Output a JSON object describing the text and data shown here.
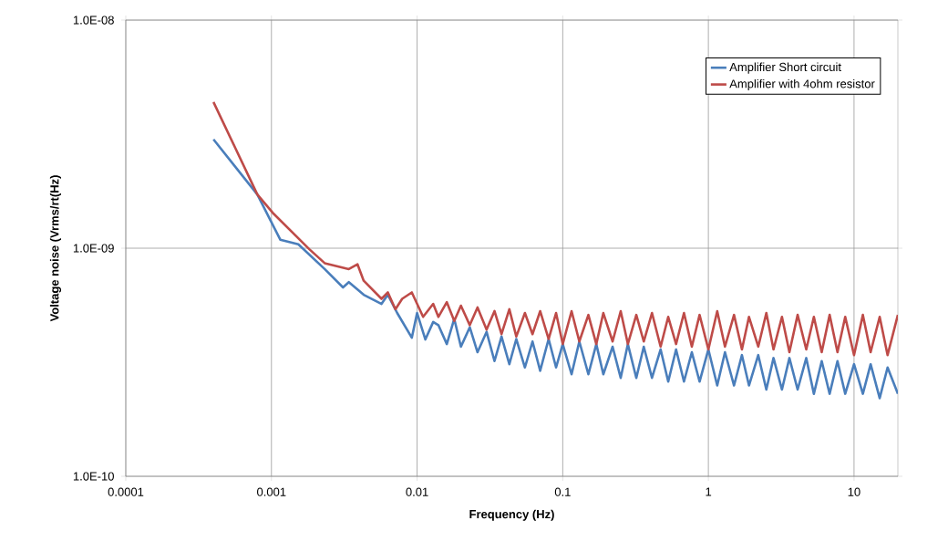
{
  "chart_data": {
    "type": "line",
    "xlabel": "Frequency (Hz)",
    "ylabel": "Voltage noise (Vrms/rt(Hz)",
    "log": "xy",
    "grid": true,
    "legend": "top right",
    "marker": "none",
    "line_style": "solid",
    "xlim": [
      0.0001,
      20
    ],
    "xticks": [
      0.0001,
      0.001,
      0.01,
      0.1,
      1,
      10
    ],
    "ylim": [
      1e-10,
      1e-08
    ],
    "yticks": [
      {
        "value": 1e-10,
        "label": "1.0E-10"
      },
      {
        "value": 1e-09,
        "label": "1.0E-09"
      },
      {
        "value": 1e-08,
        "label": "1.0E-08"
      }
    ],
    "series": [
      {
        "name": "Amplifier Short circuit",
        "color": "#4a7ebb",
        "x": [
          0.0004,
          0.0008,
          0.00115,
          0.00153,
          0.00232,
          0.0031,
          0.0034,
          0.0043,
          0.0057,
          0.0063,
          0.0073,
          0.0092,
          0.01,
          0.0114,
          0.0129,
          0.014,
          0.016,
          0.018,
          0.02,
          0.023,
          0.026,
          0.03,
          0.034,
          0.038,
          0.043,
          0.048,
          0.055,
          0.062,
          0.07,
          0.08,
          0.09,
          0.1,
          0.115,
          0.13,
          0.15,
          0.17,
          0.19,
          0.22,
          0.25,
          0.28,
          0.32,
          0.36,
          0.41,
          0.47,
          0.53,
          0.6,
          0.68,
          0.77,
          0.87,
          1,
          1.15,
          1.3,
          1.5,
          1.7,
          1.9,
          2.2,
          2.5,
          2.8,
          3.2,
          3.6,
          4.1,
          4.7,
          5.3,
          6,
          6.8,
          7.7,
          8.7,
          10,
          11.5,
          13,
          15,
          17,
          20
        ],
        "values": [
          3e-09,
          1.72e-09,
          1.09e-09,
          1.04e-09,
          8.1e-10,
          6.73e-10,
          7.1e-10,
          6.25e-10,
          5.7e-10,
          6.25e-10,
          5.2e-10,
          4.05e-10,
          5.2e-10,
          3.98e-10,
          4.75e-10,
          4.6e-10,
          3.8e-10,
          4.9e-10,
          3.7e-10,
          4.5e-10,
          3.5e-10,
          4.3e-10,
          3.2e-10,
          4.1e-10,
          3.1e-10,
          4e-10,
          3e-10,
          3.9e-10,
          2.9e-10,
          4e-10,
          3e-10,
          3.8e-10,
          2.8e-10,
          3.9e-10,
          2.8e-10,
          3.8e-10,
          2.8e-10,
          3.7e-10,
          2.7e-10,
          3.8e-10,
          2.7e-10,
          3.7e-10,
          2.7e-10,
          3.6e-10,
          2.6e-10,
          3.6e-10,
          2.6e-10,
          3.5e-10,
          2.6e-10,
          3.6e-10,
          2.5e-10,
          3.5e-10,
          2.5e-10,
          3.4e-10,
          2.5e-10,
          3.4e-10,
          2.4e-10,
          3.3e-10,
          2.4e-10,
          3.3e-10,
          2.4e-10,
          3.3e-10,
          2.3e-10,
          3.2e-10,
          2.3e-10,
          3.2e-10,
          2.3e-10,
          3.1e-10,
          2.3e-10,
          3.1e-10,
          2.2e-10,
          3e-10,
          2.3e-10
        ]
      },
      {
        "name": "Amplifier with 4ohm resistor",
        "color": "#be4b48",
        "x": [
          0.0004,
          0.0008,
          0.00102,
          0.00182,
          0.00232,
          0.0034,
          0.0039,
          0.0043,
          0.0057,
          0.0063,
          0.0071,
          0.0079,
          0.0092,
          0.011,
          0.0129,
          0.014,
          0.016,
          0.018,
          0.02,
          0.023,
          0.026,
          0.03,
          0.034,
          0.038,
          0.043,
          0.048,
          0.055,
          0.062,
          0.07,
          0.08,
          0.09,
          0.1,
          0.115,
          0.13,
          0.15,
          0.17,
          0.19,
          0.22,
          0.25,
          0.28,
          0.32,
          0.36,
          0.41,
          0.47,
          0.53,
          0.6,
          0.68,
          0.77,
          0.87,
          1,
          1.15,
          1.3,
          1.5,
          1.7,
          1.9,
          2.2,
          2.5,
          2.8,
          3.2,
          3.6,
          4.1,
          4.7,
          5.3,
          6,
          6.8,
          7.7,
          8.7,
          10,
          11.5,
          13,
          15,
          17,
          20
        ],
        "values": [
          4.37e-09,
          1.72e-09,
          1.43e-09,
          9.9e-10,
          8.6e-10,
          8.1e-10,
          8.5e-10,
          7.2e-10,
          6e-10,
          6.4e-10,
          5.4e-10,
          6e-10,
          6.4e-10,
          5e-10,
          5.7e-10,
          5e-10,
          5.8e-10,
          4.8e-10,
          5.6e-10,
          4.6e-10,
          5.5e-10,
          4.4e-10,
          5.3e-10,
          4.2e-10,
          5.4e-10,
          4.1e-10,
          5.2e-10,
          4.2e-10,
          5.3e-10,
          4e-10,
          5.2e-10,
          3.8e-10,
          5.3e-10,
          3.9e-10,
          5.1e-10,
          3.8e-10,
          5.2e-10,
          3.9e-10,
          5.3e-10,
          3.8e-10,
          5.1e-10,
          3.9e-10,
          5.2e-10,
          3.7e-10,
          5e-10,
          3.8e-10,
          5.2e-10,
          3.7e-10,
          5.1e-10,
          3.6e-10,
          5.3e-10,
          3.7e-10,
          5.1e-10,
          3.6e-10,
          5e-10,
          3.7e-10,
          5.2e-10,
          3.6e-10,
          5e-10,
          3.5e-10,
          5.1e-10,
          3.6e-10,
          5e-10,
          3.5e-10,
          5.1e-10,
          3.5e-10,
          5e-10,
          3.4e-10,
          5.1e-10,
          3.5e-10,
          5e-10,
          3.4e-10,
          5.1e-10
        ]
      }
    ]
  }
}
